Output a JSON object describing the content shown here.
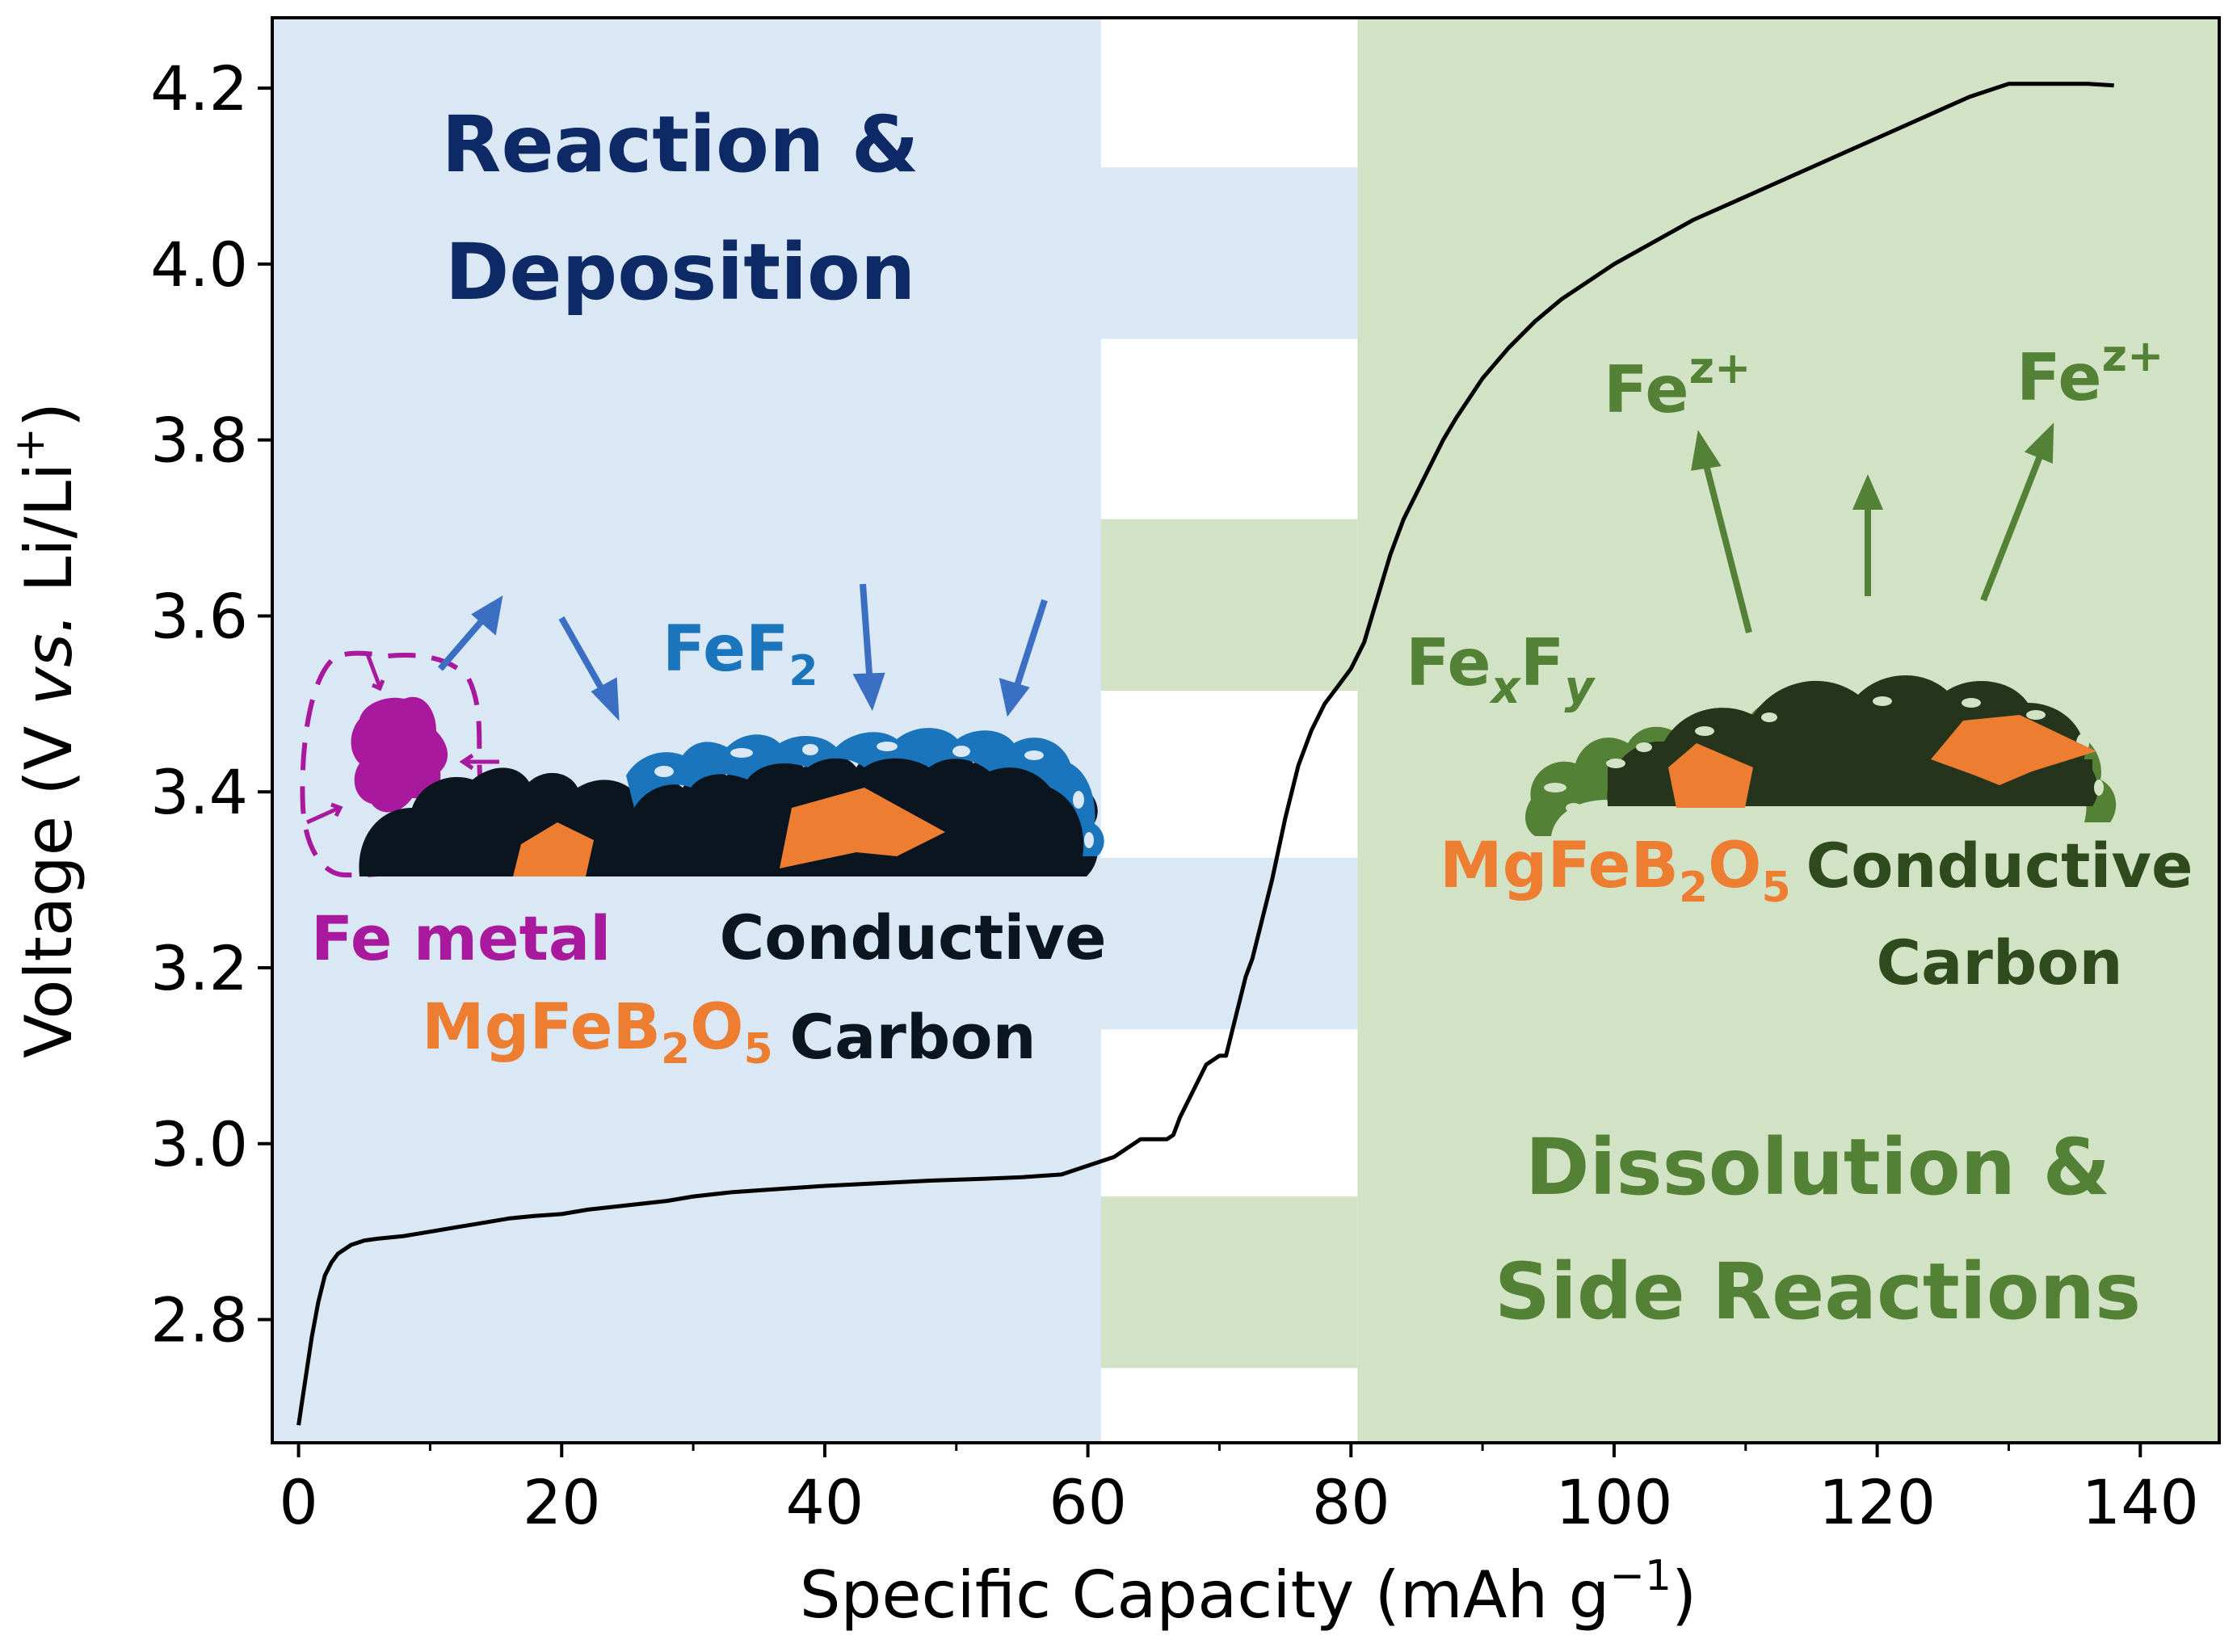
{
  "chart_data": {
    "type": "line",
    "xlabel": "Specific Capacity (mAh g",
    "xlabel_sup": "−1",
    "xlabel_end": ")",
    "ylabel_prefix": "Voltage (V ",
    "ylabel_italic": "vs.",
    "ylabel_suffix": " Li/Li",
    "ylabel_sup": "+",
    "ylabel_end": ")",
    "xlim": [
      -2,
      146
    ],
    "ylim": [
      2.66,
      4.28
    ],
    "xticks": [
      0,
      20,
      40,
      60,
      80,
      100,
      120,
      140
    ],
    "yticks": [
      2.8,
      3.0,
      3.2,
      3.4,
      3.6,
      3.8,
      4.0,
      4.2
    ],
    "x_minor_step": 10,
    "grid": false,
    "regions": [
      {
        "x": [
          -2,
          61
        ],
        "color": "#dae7f4"
      },
      {
        "x": [
          80.5,
          146
        ],
        "color": "#d2e2c5"
      }
    ],
    "region_stripes": [
      {
        "y": [
          3.915,
          4.11
        ],
        "color": "#dae7f4"
      },
      {
        "y": [
          3.515,
          3.71
        ],
        "color": "#d2e2c5"
      },
      {
        "y": [
          3.13,
          3.325
        ],
        "color": "#dae7f4"
      },
      {
        "y": [
          2.745,
          2.94
        ],
        "color": "#d2e2c5"
      }
    ],
    "series": [
      {
        "color": "#000000",
        "x": [
          0,
          0.2,
          0.5,
          1,
          1.5,
          2,
          2.5,
          3,
          4,
          5,
          6,
          8,
          10,
          12,
          14,
          16,
          18,
          20,
          22,
          25,
          28,
          30,
          33,
          36,
          40,
          44,
          48,
          52,
          55,
          58,
          60,
          62,
          63,
          64,
          65,
          66,
          66.5,
          67,
          68,
          69,
          70,
          70.5,
          71,
          72,
          72.5,
          73,
          74,
          75,
          76,
          77,
          78,
          79,
          80,
          81,
          82,
          83,
          84,
          85,
          86,
          87,
          88,
          90,
          92,
          94,
          96,
          98,
          100,
          103,
          106,
          109,
          112,
          115,
          118,
          121,
          124,
          127,
          129,
          130,
          132,
          134,
          136,
          138
        ],
        "y": [
          2.68,
          2.7,
          2.73,
          2.78,
          2.82,
          2.85,
          2.865,
          2.875,
          2.885,
          2.89,
          2.892,
          2.895,
          2.9,
          2.905,
          2.91,
          2.915,
          2.918,
          2.92,
          2.925,
          2.93,
          2.935,
          2.94,
          2.945,
          2.948,
          2.952,
          2.955,
          2.958,
          2.96,
          2.962,
          2.965,
          2.975,
          2.985,
          2.995,
          3.005,
          3.005,
          3.005,
          3.01,
          3.03,
          3.06,
          3.09,
          3.1,
          3.1,
          3.13,
          3.19,
          3.21,
          3.24,
          3.3,
          3.37,
          3.43,
          3.47,
          3.5,
          3.52,
          3.54,
          3.57,
          3.62,
          3.67,
          3.71,
          3.74,
          3.77,
          3.8,
          3.825,
          3.87,
          3.905,
          3.935,
          3.96,
          3.98,
          4.0,
          4.025,
          4.05,
          4.07,
          4.09,
          4.11,
          4.13,
          4.15,
          4.17,
          4.19,
          4.2,
          4.205,
          4.205,
          4.205,
          4.205,
          4.203
        ]
      }
    ]
  },
  "annotations": {
    "left_title_line1": "Reaction &",
    "left_title_line2": "Deposition",
    "right_title_line1": "Dissolution &",
    "right_title_line2": "Side Reactions",
    "fef_base": "FeF",
    "fef_sub": "2",
    "fe_metal": "Fe metal",
    "left_mgfe_base": "MgFeB",
    "left_mgfe_sub1": "2",
    "left_mgfe_mid": "O",
    "left_mgfe_sub2": "5",
    "left_carbon_line1": "Conductive",
    "left_carbon_line2": "Carbon",
    "fe_ion_base": "Fe",
    "fe_ion_sup": "z+",
    "fexfy_base1": "Fe",
    "fexfy_sub1": "x",
    "fexfy_base2": "F",
    "fexfy_sub2": "y",
    "right_mgfe_base": "MgFeB",
    "right_mgfe_sub1": "2",
    "right_mgfe_mid": "O",
    "right_mgfe_sub2": "5",
    "right_carbon_line1": "Conductive",
    "right_carbon_line2": "Carbon"
  },
  "colors": {
    "navy": "#0d2a66",
    "blue": "#1b75bc",
    "arrow_blue": "#3b6fc4",
    "purple": "#a8199e",
    "orange": "#ed7d31",
    "dark_green": "#2f4a1c",
    "mid_green": "#538135",
    "carbon": "#0b1520",
    "carbon_green": "#26341b"
  }
}
